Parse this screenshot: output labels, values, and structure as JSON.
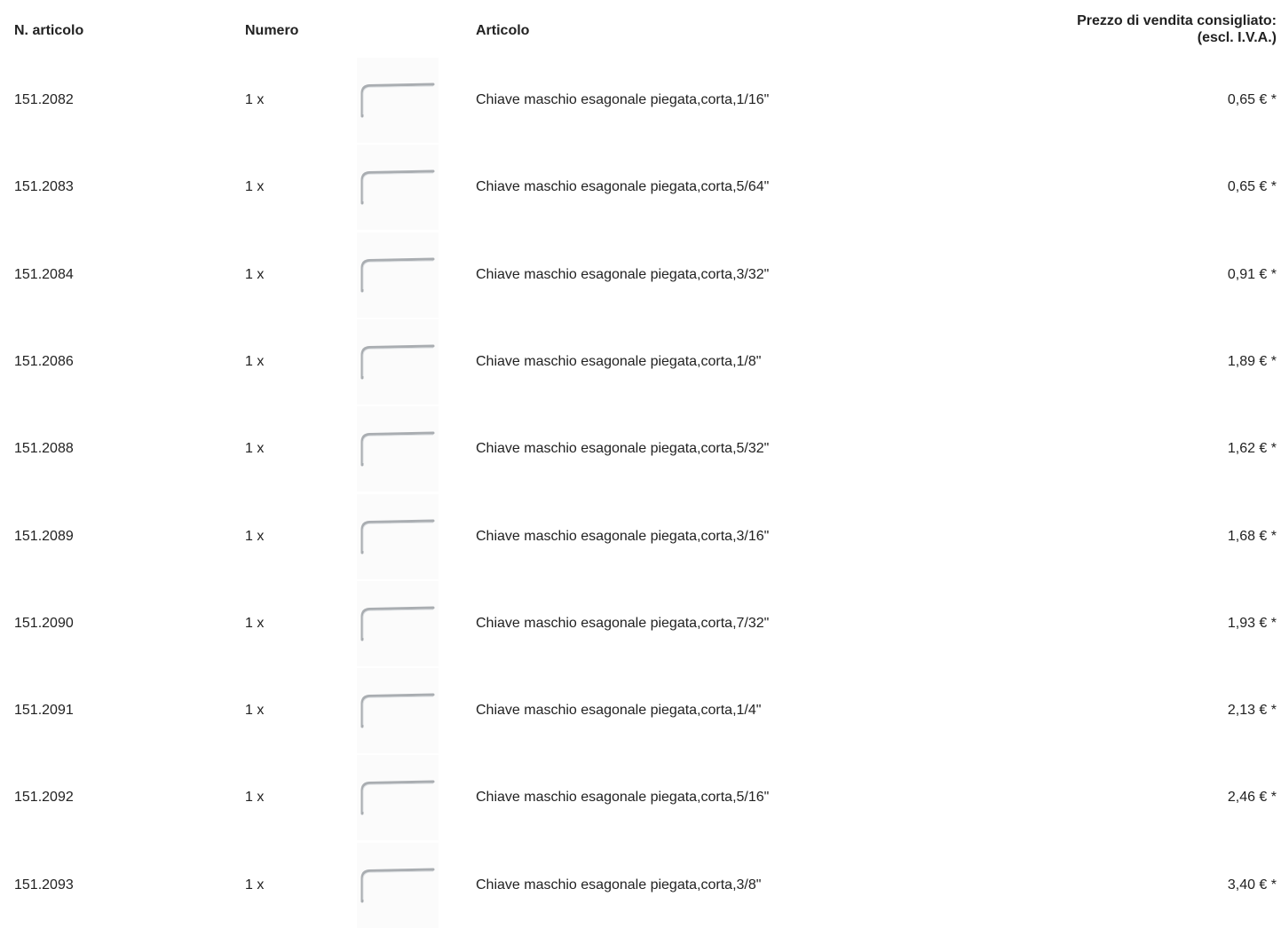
{
  "table": {
    "header": {
      "article_no": "N. articolo",
      "quantity": "Numero",
      "article": "Articolo",
      "price": [
        "Prezzo di vendita consigliato:",
        "(escl. I.V.A.)"
      ]
    },
    "rows": [
      [
        "151.2082",
        "1 x",
        "Chiave maschio esagonale piegata,corta,1/16\"",
        "0,65 € *"
      ],
      [
        "151.2083",
        "1 x",
        "Chiave maschio esagonale piegata,corta,5/64\"",
        "0,65 € *"
      ],
      [
        "151.2084",
        "1 x",
        "Chiave maschio esagonale piegata,corta,3/32\"",
        "0,91 € *"
      ],
      [
        "151.2086",
        "1 x",
        "Chiave maschio esagonale piegata,corta,1/8\"",
        "1,89 € *"
      ],
      [
        "151.2088",
        "1 x",
        "Chiave maschio esagonale piegata,corta,5/32\"",
        "1,62 € *"
      ],
      [
        "151.2089",
        "1 x",
        "Chiave maschio esagonale piegata,corta,3/16\"",
        "1,68 € *"
      ],
      [
        "151.2090",
        "1 x",
        "Chiave maschio esagonale piegata,corta,7/32\"",
        "1,93 € *"
      ],
      [
        "151.2091",
        "1 x",
        "Chiave maschio esagonale piegata,corta,1/4\"",
        "2,13 € *"
      ],
      [
        "151.2092",
        "1 x",
        "Chiave maschio esagonale piegata,corta,5/16\"",
        "2,46 € *"
      ],
      [
        "151.2093",
        "1 x",
        "Chiave maschio esagonale piegata,corta,3/8\"",
        "3,40 € *"
      ]
    ]
  }
}
